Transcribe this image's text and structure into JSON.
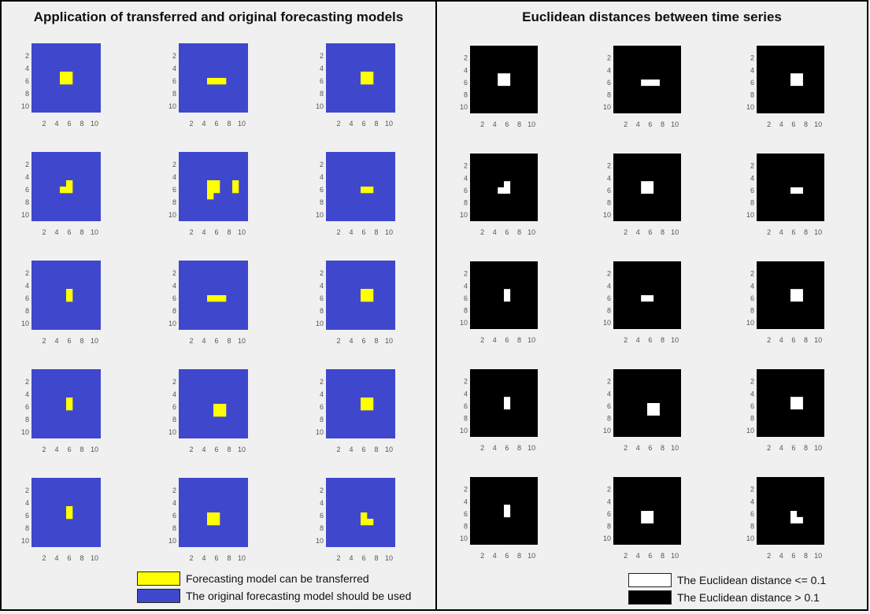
{
  "left_panel": {
    "title": "Application of transferred and original forecasting models",
    "legend": [
      {
        "label": "Forecasting model can be transferred",
        "color": "#ffff00"
      },
      {
        "label": "The original forecasting model should be used",
        "color": "#3f48cc"
      }
    ]
  },
  "right_panel": {
    "title": "Euclidean distances between time series",
    "legend": [
      {
        "label": "The Euclidean distance <= 0.1",
        "color": "#ffffff"
      },
      {
        "label": "The Euclidean distance > 0.1",
        "color": "#000000"
      }
    ]
  },
  "chart_data": [
    {
      "type": "heatmap",
      "panel": "left",
      "grid_size": [
        11,
        11
      ],
      "background_color": "#3f48cc",
      "highlight_color": "#ffff00",
      "xticks": [
        2,
        4,
        6,
        8,
        10
      ],
      "yticks": [
        2,
        4,
        6,
        8,
        10
      ],
      "subplots": [
        [
          [
            5,
            5
          ],
          [
            6,
            5
          ],
          [
            5,
            6
          ],
          [
            6,
            6
          ]
        ],
        [
          [
            5,
            6
          ],
          [
            6,
            6
          ],
          [
            7,
            6
          ]
        ],
        [
          [
            6,
            5
          ],
          [
            7,
            5
          ],
          [
            6,
            6
          ],
          [
            7,
            6
          ]
        ],
        [
          [
            6,
            5
          ],
          [
            5,
            6
          ],
          [
            6,
            6
          ]
        ],
        [
          [
            5,
            5
          ],
          [
            6,
            5
          ],
          [
            5,
            6
          ],
          [
            6,
            6
          ],
          [
            5,
            7
          ],
          [
            9,
            5
          ],
          [
            9,
            6
          ]
        ],
        [
          [
            6,
            6
          ],
          [
            7,
            6
          ]
        ],
        [
          [
            6,
            5
          ],
          [
            6,
            6
          ]
        ],
        [
          [
            5,
            6
          ],
          [
            6,
            6
          ],
          [
            7,
            6
          ]
        ],
        [
          [
            6,
            5
          ],
          [
            7,
            5
          ],
          [
            6,
            6
          ],
          [
            7,
            6
          ]
        ],
        [
          [
            6,
            5
          ],
          [
            6,
            6
          ]
        ],
        [
          [
            6,
            6
          ],
          [
            7,
            6
          ],
          [
            6,
            7
          ],
          [
            7,
            7
          ]
        ],
        [
          [
            6,
            5
          ],
          [
            7,
            5
          ],
          [
            6,
            6
          ],
          [
            7,
            6
          ]
        ],
        [
          [
            6,
            5
          ],
          [
            6,
            6
          ]
        ],
        [
          [
            5,
            6
          ],
          [
            6,
            6
          ],
          [
            5,
            7
          ],
          [
            6,
            7
          ]
        ],
        [
          [
            6,
            6
          ],
          [
            6,
            7
          ],
          [
            7,
            7
          ]
        ]
      ]
    },
    {
      "type": "heatmap",
      "panel": "right",
      "grid_size": [
        11,
        11
      ],
      "background_color": "#000000",
      "highlight_color": "#ffffff",
      "xticks": [
        2,
        4,
        6,
        8,
        10
      ],
      "yticks": [
        2,
        4,
        6,
        8,
        10
      ],
      "subplots": [
        [
          [
            5,
            5
          ],
          [
            6,
            5
          ],
          [
            5,
            6
          ],
          [
            6,
            6
          ]
        ],
        [
          [
            5,
            6
          ],
          [
            6,
            6
          ],
          [
            7,
            6
          ]
        ],
        [
          [
            6,
            5
          ],
          [
            7,
            5
          ],
          [
            6,
            6
          ],
          [
            7,
            6
          ]
        ],
        [
          [
            6,
            5
          ],
          [
            5,
            6
          ],
          [
            6,
            6
          ]
        ],
        [
          [
            5,
            5
          ],
          [
            6,
            5
          ],
          [
            5,
            6
          ],
          [
            6,
            6
          ]
        ],
        [
          [
            6,
            6
          ],
          [
            7,
            6
          ]
        ],
        [
          [
            6,
            5
          ],
          [
            6,
            6
          ]
        ],
        [
          [
            5,
            6
          ],
          [
            6,
            6
          ]
        ],
        [
          [
            6,
            5
          ],
          [
            7,
            5
          ],
          [
            6,
            6
          ],
          [
            7,
            6
          ]
        ],
        [
          [
            6,
            5
          ],
          [
            6,
            6
          ]
        ],
        [
          [
            6,
            6
          ],
          [
            7,
            6
          ],
          [
            6,
            7
          ],
          [
            7,
            7
          ]
        ],
        [
          [
            6,
            5
          ],
          [
            7,
            5
          ],
          [
            6,
            6
          ],
          [
            7,
            6
          ]
        ],
        [
          [
            6,
            5
          ],
          [
            6,
            6
          ]
        ],
        [
          [
            5,
            6
          ],
          [
            6,
            6
          ],
          [
            5,
            7
          ],
          [
            6,
            7
          ]
        ],
        [
          [
            6,
            6
          ],
          [
            6,
            7
          ],
          [
            7,
            7
          ]
        ]
      ]
    }
  ]
}
